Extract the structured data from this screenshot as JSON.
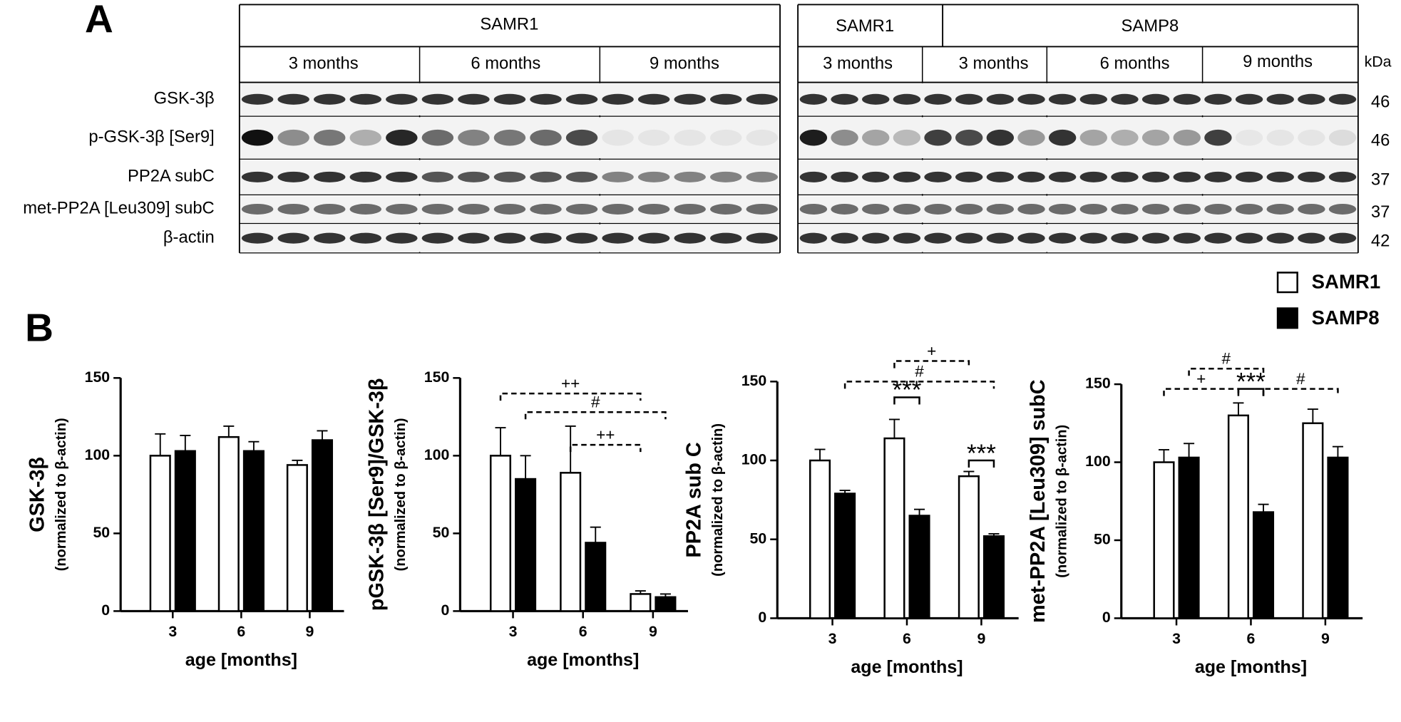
{
  "panel_labels": [
    "A",
    "B"
  ],
  "blot": {
    "left": {
      "title": "SAMR1",
      "groups": [
        "3 months",
        "6 months",
        "9 months"
      ]
    },
    "right": {
      "titles": [
        "SAMR1",
        "SAMP8"
      ],
      "groups": [
        "3 months",
        "3 months",
        "6 months",
        "9 months"
      ]
    },
    "proteins": [
      "GSK-3β",
      "p-GSK-3β [Ser9]",
      "PP2A subC",
      "met-PP2A [Leu309] subC",
      "β-actin"
    ],
    "kda_label": "kDa",
    "kda": [
      "46",
      "46",
      "37",
      "37",
      "42"
    ]
  },
  "chart_data": [
    {
      "type": "bar",
      "ylabel": "GSK-3β",
      "ylabel_sub": "(normalized to β-actin)",
      "xlabel": "age [months]",
      "categories": [
        "3",
        "6",
        "9"
      ],
      "series": [
        {
          "name": "SAMR1",
          "color": "#ffffff",
          "values": [
            100,
            112,
            94
          ],
          "errors": [
            14,
            7,
            3
          ]
        },
        {
          "name": "SAMP8",
          "color": "#000000",
          "values": [
            103,
            103,
            110
          ],
          "errors": [
            10,
            6,
            6
          ]
        }
      ],
      "ylim": [
        0,
        150
      ],
      "yticks": [
        0,
        50,
        100,
        150
      ],
      "annotations": []
    },
    {
      "type": "bar",
      "ylabel": "pGSK-3β [Ser9]/GSK-3β",
      "ylabel_sub": "(normalized to β-actin)",
      "xlabel": "age [months]",
      "categories": [
        "3",
        "6",
        "9"
      ],
      "series": [
        {
          "name": "SAMR1",
          "color": "#ffffff",
          "values": [
            100,
            89,
            11
          ],
          "errors": [
            18,
            30,
            2
          ]
        },
        {
          "name": "SAMP8",
          "color": "#000000",
          "values": [
            85,
            44,
            9
          ],
          "errors": [
            15,
            10,
            2
          ]
        }
      ],
      "ylim": [
        0,
        150
      ],
      "yticks": [
        0,
        50,
        100,
        150
      ],
      "annotations": [
        "++",
        "#",
        "++"
      ]
    },
    {
      "type": "bar",
      "ylabel": "PP2A sub C",
      "ylabel_sub": "(normalized to β-actin)",
      "xlabel": "age [months]",
      "categories": [
        "3",
        "6",
        "9"
      ],
      "series": [
        {
          "name": "SAMR1",
          "color": "#ffffff",
          "values": [
            100,
            114,
            90
          ],
          "errors": [
            7,
            12,
            3
          ]
        },
        {
          "name": "SAMP8",
          "color": "#000000",
          "values": [
            79,
            65,
            52
          ],
          "errors": [
            2,
            4,
            1.5
          ]
        }
      ],
      "ylim": [
        0,
        150
      ],
      "yticks": [
        0,
        50,
        100,
        150
      ],
      "annotations": [
        "+",
        "#",
        "***",
        "***"
      ]
    },
    {
      "type": "bar",
      "ylabel": "met-PP2A [Leu309] subC",
      "ylabel_sub": "(normalized to β-actin)",
      "xlabel": "age [months]",
      "categories": [
        "3",
        "6",
        "9"
      ],
      "series": [
        {
          "name": "SAMR1",
          "color": "#ffffff",
          "values": [
            100,
            130,
            125
          ],
          "errors": [
            8,
            8,
            9
          ]
        },
        {
          "name": "SAMP8",
          "color": "#000000",
          "values": [
            103,
            68,
            103
          ],
          "errors": [
            9,
            5,
            7
          ]
        }
      ],
      "ylim": [
        0,
        150
      ],
      "yticks": [
        0,
        50,
        100,
        150
      ],
      "annotations": [
        "+",
        "#",
        "***",
        "#"
      ]
    }
  ]
}
